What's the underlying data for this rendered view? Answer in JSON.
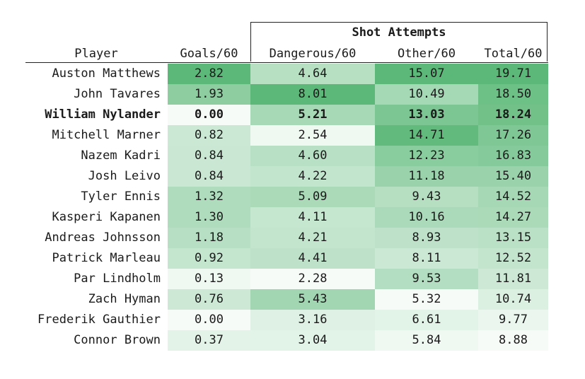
{
  "chart_data": {
    "type": "table",
    "group_header": "Shot Attempts",
    "columns": [
      "Player",
      "Goals/60",
      "Dangerous/60",
      "Other/60",
      "Total/60"
    ],
    "highlight_row": "William Nylander",
    "colors": {
      "low": "#ffffff",
      "high": "#5cb878",
      "text": "#1a1a1a",
      "rule": "#222222"
    },
    "rows": [
      {
        "player": "Auston Matthews",
        "goals": "2.82",
        "dangerous": "4.64",
        "other": "15.07",
        "total": "19.71"
      },
      {
        "player": "John Tavares",
        "goals": "1.93",
        "dangerous": "8.01",
        "other": "10.49",
        "total": "18.50"
      },
      {
        "player": "William Nylander",
        "goals": "0.00",
        "dangerous": "5.21",
        "other": "13.03",
        "total": "18.24"
      },
      {
        "player": "Mitchell Marner",
        "goals": "0.82",
        "dangerous": "2.54",
        "other": "14.71",
        "total": "17.26"
      },
      {
        "player": "Nazem Kadri",
        "goals": "0.84",
        "dangerous": "4.60",
        "other": "12.23",
        "total": "16.83"
      },
      {
        "player": "Josh Leivo",
        "goals": "0.84",
        "dangerous": "4.22",
        "other": "11.18",
        "total": "15.40"
      },
      {
        "player": "Tyler Ennis",
        "goals": "1.32",
        "dangerous": "5.09",
        "other": "9.43",
        "total": "14.52"
      },
      {
        "player": "Kasperi Kapanen",
        "goals": "1.30",
        "dangerous": "4.11",
        "other": "10.16",
        "total": "14.27"
      },
      {
        "player": "Andreas Johnsson",
        "goals": "1.18",
        "dangerous": "4.21",
        "other": "8.93",
        "total": "13.15"
      },
      {
        "player": "Patrick Marleau",
        "goals": "0.92",
        "dangerous": "4.41",
        "other": "8.11",
        "total": "12.52"
      },
      {
        "player": "Par Lindholm",
        "goals": "0.13",
        "dangerous": "2.28",
        "other": "9.53",
        "total": "11.81"
      },
      {
        "player": "Zach Hyman",
        "goals": "0.76",
        "dangerous": "5.43",
        "other": "5.32",
        "total": "10.74"
      },
      {
        "player": "Frederik Gauthier",
        "goals": "0.00",
        "dangerous": "3.16",
        "other": "6.61",
        "total": "9.77"
      },
      {
        "player": "Connor Brown",
        "goals": "0.37",
        "dangerous": "3.04",
        "other": "5.84",
        "total": "8.88"
      }
    ]
  }
}
